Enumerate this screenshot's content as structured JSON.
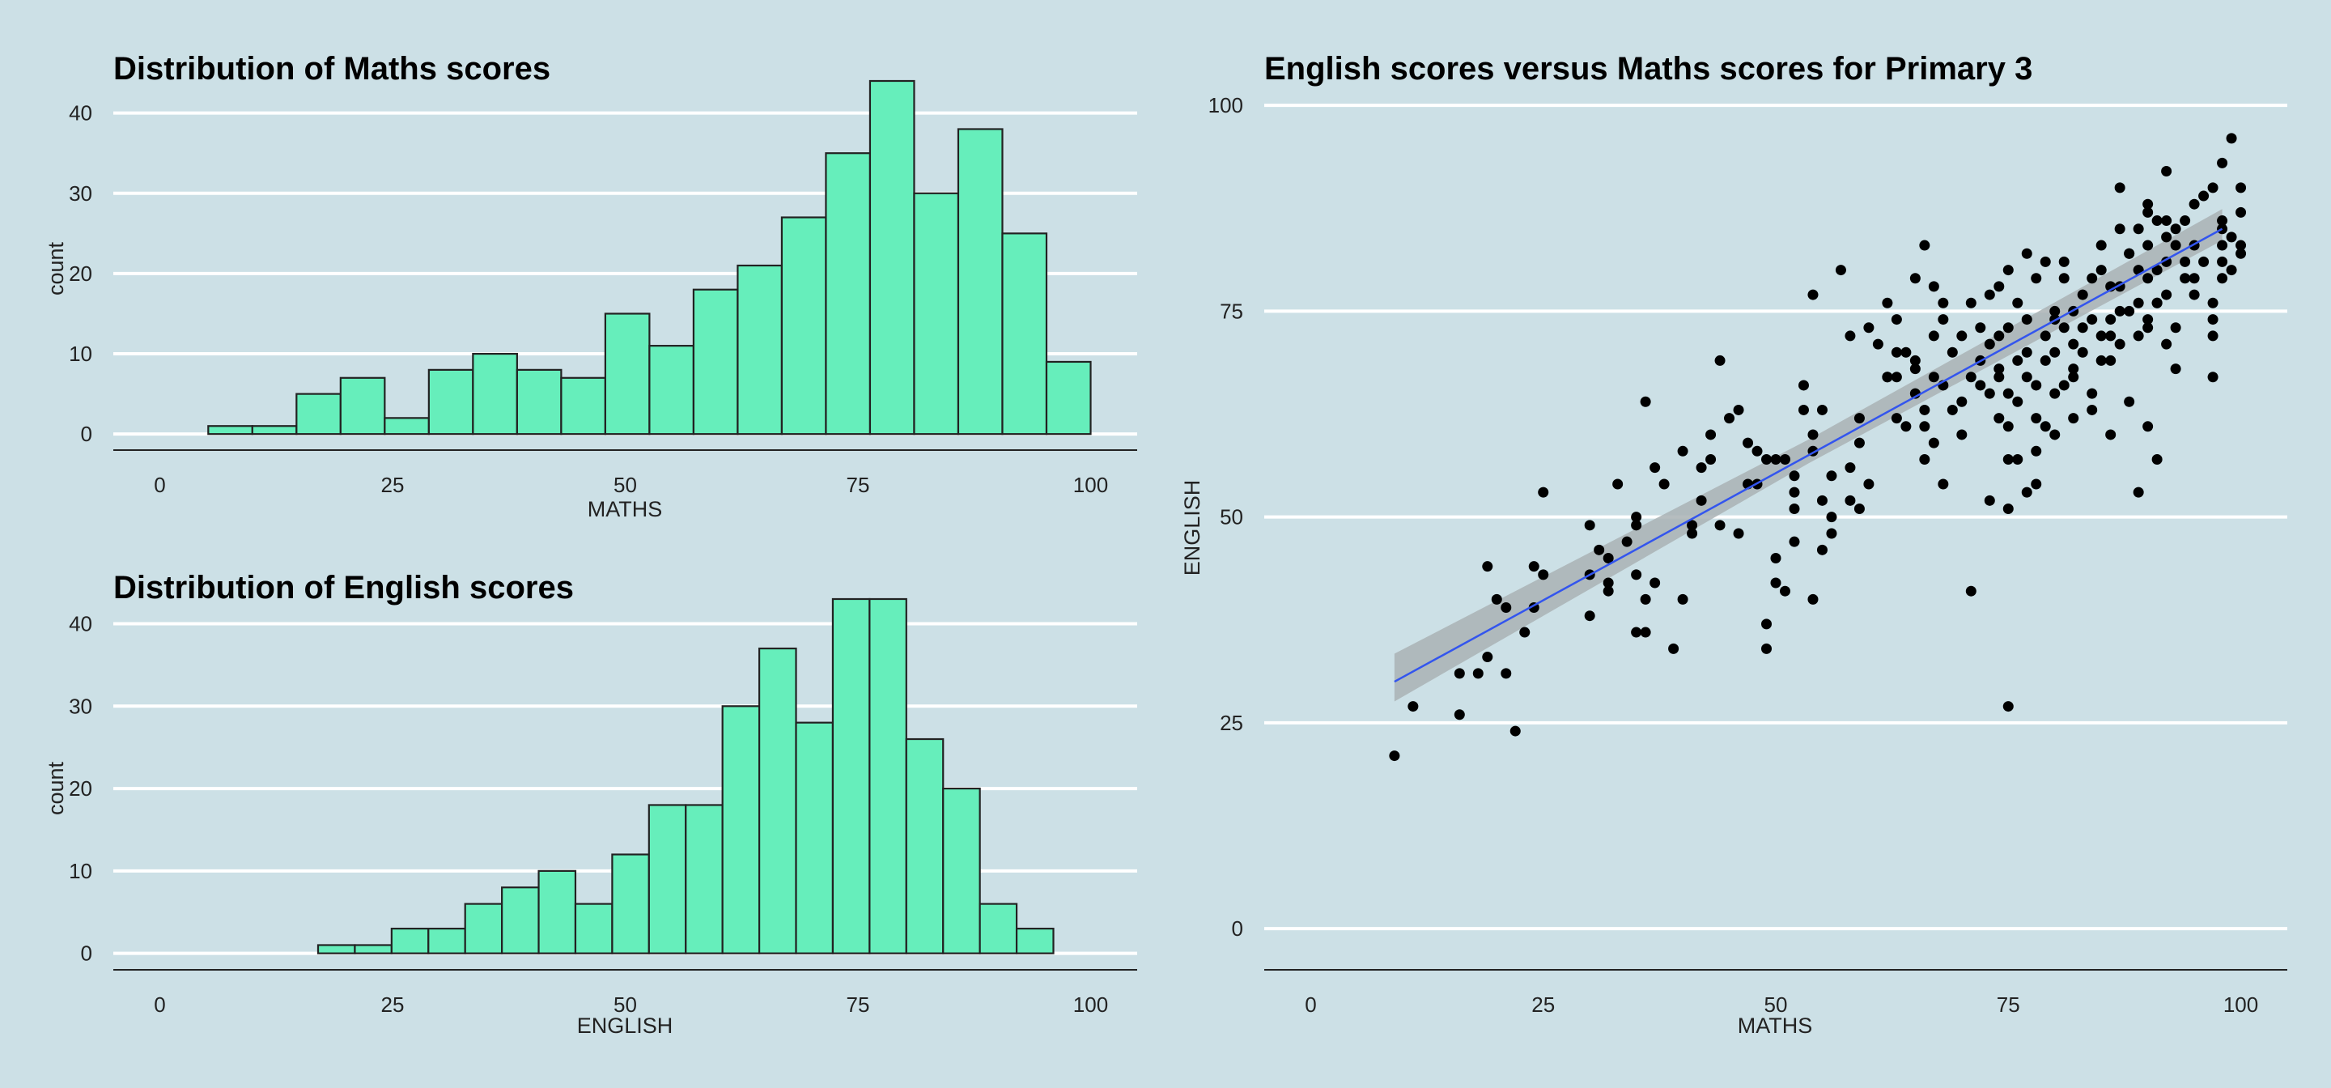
{
  "colors": {
    "background": "#cce0e6",
    "histogram_fill": "#66eebb",
    "bar_stroke": "#222222",
    "gridline": "#ffffff",
    "trend_line": "#3355ee",
    "confidence_band": "#a9b1b4",
    "points": "#000000"
  },
  "chart_data": [
    {
      "id": "maths",
      "type": "bar",
      "title": "Distribution of Maths scores",
      "xlabel": "MATHS",
      "ylabel": "count",
      "xlim": [
        -5,
        105
      ],
      "ylim": [
        -2,
        44
      ],
      "xticks": [
        0,
        25,
        50,
        75,
        100
      ],
      "yticks": [
        0,
        10,
        20,
        30,
        40
      ],
      "grid": "horizontal",
      "bin_edges": [
        5.2,
        9.94,
        14.68,
        19.42,
        24.16,
        28.9,
        33.64,
        38.38,
        43.12,
        47.86,
        52.6,
        57.34,
        62.08,
        66.82,
        71.56,
        76.3,
        81.04,
        85.78,
        90.52,
        95.26,
        100
      ],
      "values": [
        1,
        1,
        5,
        7,
        2,
        8,
        10,
        8,
        7,
        15,
        11,
        18,
        21,
        27,
        35,
        44,
        30,
        38,
        25,
        9
      ]
    },
    {
      "id": "english",
      "type": "bar",
      "title": "Distribution of English scores",
      "xlabel": "ENGLISH",
      "ylabel": "count",
      "xlim": [
        -5,
        105
      ],
      "ylim": [
        -2,
        43
      ],
      "xticks": [
        0,
        25,
        50,
        75,
        100
      ],
      "yticks": [
        0,
        10,
        20,
        30,
        40
      ],
      "grid": "horizontal",
      "bin_edges": [
        17,
        20.95,
        24.9,
        28.85,
        32.8,
        36.75,
        40.7,
        44.65,
        48.6,
        52.55,
        56.5,
        60.45,
        64.4,
        68.35,
        72.3,
        76.25,
        80.2,
        84.15,
        88.1,
        92.05,
        96
      ],
      "values": [
        1,
        1,
        3,
        3,
        6,
        8,
        10,
        6,
        12,
        18,
        18,
        30,
        37,
        28,
        43,
        43,
        26,
        20,
        6,
        3
      ]
    },
    {
      "id": "scatter",
      "type": "scatter",
      "title": "English scores versus Maths scores for Primary 3",
      "xlabel": "MATHS",
      "ylabel": "ENGLISH",
      "xlim": [
        -5,
        105
      ],
      "ylim": [
        -5,
        101
      ],
      "xticks": [
        0,
        25,
        50,
        75,
        100
      ],
      "yticks": [
        0,
        25,
        50,
        75,
        100
      ],
      "grid": "horizontal",
      "trend_line": {
        "x": [
          9,
          98
        ],
        "y": [
          30,
          85
        ]
      },
      "confidence_band": {
        "x": [
          9,
          53.5,
          98
        ],
        "lower": [
          27.6,
          56.5,
          83.6
        ],
        "upper": [
          33.4,
          59.4,
          87.4
        ]
      },
      "points": [
        [
          9,
          21
        ],
        [
          11,
          27
        ],
        [
          16,
          26
        ],
        [
          16,
          31
        ],
        [
          18,
          31
        ],
        [
          19,
          33
        ],
        [
          19,
          44
        ],
        [
          20,
          40
        ],
        [
          21,
          39
        ],
        [
          21,
          31
        ],
        [
          22,
          24
        ],
        [
          23,
          36
        ],
        [
          24,
          44
        ],
        [
          24,
          39
        ],
        [
          25,
          43
        ],
        [
          25,
          53
        ],
        [
          30,
          43
        ],
        [
          30,
          38
        ],
        [
          30,
          49
        ],
        [
          31,
          46
        ],
        [
          32,
          45
        ],
        [
          32,
          41
        ],
        [
          32,
          42
        ],
        [
          33,
          54
        ],
        [
          34,
          47
        ],
        [
          35,
          43
        ],
        [
          35,
          49
        ],
        [
          35,
          36
        ],
        [
          35,
          50
        ],
        [
          36,
          36
        ],
        [
          36,
          40
        ],
        [
          36,
          64
        ],
        [
          37,
          42
        ],
        [
          37,
          56
        ],
        [
          38,
          54
        ],
        [
          39,
          34
        ],
        [
          40,
          40
        ],
        [
          40,
          58
        ],
        [
          41,
          48
        ],
        [
          41,
          49
        ],
        [
          42,
          52
        ],
        [
          42,
          56
        ],
        [
          43,
          57
        ],
        [
          43,
          60
        ],
        [
          44,
          49
        ],
        [
          44,
          69
        ],
        [
          45,
          62
        ],
        [
          46,
          63
        ],
        [
          47,
          59
        ],
        [
          47,
          54
        ],
        [
          48,
          54
        ],
        [
          48,
          58
        ],
        [
          49,
          37
        ],
        [
          49,
          34
        ],
        [
          49,
          57
        ],
        [
          50,
          45
        ],
        [
          50,
          57
        ],
        [
          51,
          41
        ],
        [
          51,
          57
        ],
        [
          52,
          51
        ],
        [
          52,
          53
        ],
        [
          52,
          55
        ],
        [
          53,
          63
        ],
        [
          53,
          66
        ],
        [
          54,
          40
        ],
        [
          54,
          77
        ],
        [
          54,
          60
        ],
        [
          55,
          52
        ],
        [
          55,
          46
        ],
        [
          56,
          50
        ],
        [
          56,
          48
        ],
        [
          56,
          55
        ],
        [
          57,
          80
        ],
        [
          58,
          52
        ],
        [
          58,
          56
        ],
        [
          59,
          62
        ],
        [
          59,
          51
        ],
        [
          59,
          59
        ],
        [
          60,
          73
        ],
        [
          60,
          54
        ],
        [
          61,
          71
        ],
        [
          62,
          67
        ],
        [
          62,
          76
        ],
        [
          62,
          67
        ],
        [
          63,
          67
        ],
        [
          63,
          62
        ],
        [
          63,
          74
        ],
        [
          64,
          61
        ],
        [
          64,
          70
        ],
        [
          65,
          65
        ],
        [
          65,
          69
        ],
        [
          65,
          68
        ],
        [
          66,
          57
        ],
        [
          66,
          63
        ],
        [
          66,
          61
        ],
        [
          67,
          78
        ],
        [
          67,
          72
        ],
        [
          67,
          67
        ],
        [
          67,
          59
        ],
        [
          68,
          54
        ],
        [
          68,
          66
        ],
        [
          68,
          74
        ],
        [
          69,
          70
        ],
        [
          69,
          63
        ],
        [
          70,
          64
        ],
        [
          70,
          60
        ],
        [
          70,
          72
        ],
        [
          71,
          76
        ],
        [
          71,
          67
        ],
        [
          72,
          73
        ],
        [
          72,
          69
        ],
        [
          72,
          66
        ],
        [
          73,
          65
        ],
        [
          73,
          52
        ],
        [
          73,
          71
        ],
        [
          73,
          77
        ],
        [
          74,
          72
        ],
        [
          74,
          78
        ],
        [
          74,
          62
        ],
        [
          74,
          67
        ],
        [
          74,
          68
        ],
        [
          75,
          65
        ],
        [
          75,
          57
        ],
        [
          75,
          51
        ],
        [
          75,
          61
        ],
        [
          75,
          80
        ],
        [
          75,
          73
        ],
        [
          76,
          76
        ],
        [
          76,
          64
        ],
        [
          76,
          57
        ],
        [
          76,
          69
        ],
        [
          77,
          70
        ],
        [
          77,
          82
        ],
        [
          77,
          74
        ],
        [
          77,
          53
        ],
        [
          77,
          67
        ],
        [
          78,
          58
        ],
        [
          78,
          66
        ],
        [
          78,
          62
        ],
        [
          78,
          79
        ],
        [
          78,
          54
        ],
        [
          79,
          72
        ],
        [
          79,
          69
        ],
        [
          79,
          81
        ],
        [
          79,
          61
        ],
        [
          80,
          75
        ],
        [
          80,
          60
        ],
        [
          80,
          65
        ],
        [
          80,
          70
        ],
        [
          80,
          74
        ],
        [
          81,
          79
        ],
        [
          81,
          66
        ],
        [
          81,
          73
        ],
        [
          81,
          81
        ],
        [
          82,
          67
        ],
        [
          82,
          75
        ],
        [
          82,
          71
        ],
        [
          82,
          68
        ],
        [
          82,
          62
        ],
        [
          83,
          70
        ],
        [
          83,
          73
        ],
        [
          83,
          77
        ],
        [
          84,
          79
        ],
        [
          84,
          74
        ],
        [
          84,
          63
        ],
        [
          84,
          65
        ],
        [
          85,
          80
        ],
        [
          85,
          72
        ],
        [
          85,
          69
        ],
        [
          85,
          83
        ],
        [
          86,
          74
        ],
        [
          86,
          78
        ],
        [
          86,
          60
        ],
        [
          86,
          72
        ],
        [
          86,
          69
        ],
        [
          87,
          78
        ],
        [
          87,
          85
        ],
        [
          87,
          75
        ],
        [
          87,
          90
        ],
        [
          87,
          71
        ],
        [
          88,
          82
        ],
        [
          88,
          75
        ],
        [
          88,
          64
        ],
        [
          88,
          82
        ],
        [
          89,
          80
        ],
        [
          89,
          85
        ],
        [
          89,
          76
        ],
        [
          89,
          72
        ],
        [
          90,
          88
        ],
        [
          90,
          79
        ],
        [
          90,
          74
        ],
        [
          90,
          73
        ],
        [
          90,
          83
        ],
        [
          90,
          87
        ],
        [
          90,
          61
        ],
        [
          91,
          76
        ],
        [
          91,
          86
        ],
        [
          91,
          80
        ],
        [
          91,
          76
        ],
        [
          92,
          71
        ],
        [
          92,
          81
        ],
        [
          92,
          84
        ],
        [
          92,
          86
        ],
        [
          92,
          77
        ],
        [
          92,
          92
        ],
        [
          93,
          83
        ],
        [
          93,
          68
        ],
        [
          93,
          85
        ],
        [
          93,
          73
        ],
        [
          94,
          79
        ],
        [
          94,
          86
        ],
        [
          94,
          81
        ],
        [
          95,
          77
        ],
        [
          95,
          83
        ],
        [
          95,
          88
        ],
        [
          95,
          79
        ],
        [
          96,
          89
        ],
        [
          96,
          81
        ],
        [
          97,
          67
        ],
        [
          97,
          74
        ],
        [
          97,
          76
        ],
        [
          97,
          90
        ],
        [
          97,
          72
        ],
        [
          98,
          81
        ],
        [
          98,
          79
        ],
        [
          98,
          83
        ],
        [
          98,
          93
        ],
        [
          98,
          86
        ],
        [
          98,
          85
        ],
        [
          99,
          84
        ],
        [
          99,
          96
        ],
        [
          99,
          80
        ],
        [
          100,
          83
        ],
        [
          100,
          90
        ],
        [
          100,
          87
        ],
        [
          89,
          53
        ],
        [
          91,
          57
        ],
        [
          71,
          41
        ],
        [
          75,
          27
        ],
        [
          100,
          82
        ],
        [
          65,
          79
        ],
        [
          66,
          83
        ],
        [
          68,
          76
        ],
        [
          63,
          70
        ],
        [
          58,
          72
        ],
        [
          55,
          63
        ],
        [
          54,
          58
        ],
        [
          52,
          47
        ],
        [
          50,
          42
        ],
        [
          46,
          48
        ]
      ]
    }
  ]
}
